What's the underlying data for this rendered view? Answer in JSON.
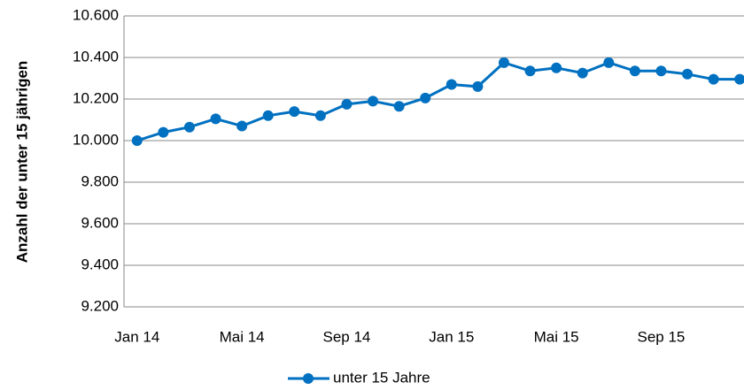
{
  "chart_data": {
    "type": "line",
    "y_label": "Anzahl der unter 15 jährigen",
    "categories": [
      "Jan 14",
      null,
      null,
      null,
      "Mai 14",
      null,
      null,
      null,
      "Sep 14",
      null,
      null,
      null,
      "Jan 15",
      null,
      null,
      null,
      "Mai 15",
      null,
      null,
      null,
      "Sep 15",
      null,
      null,
      null
    ],
    "series": [
      {
        "name": "unter 15 Jahre",
        "color": "#0070c0",
        "values": [
          10000,
          10040,
          10065,
          10105,
          10070,
          10120,
          10140,
          10120,
          10175,
          10190,
          10165,
          10205,
          10270,
          10260,
          10375,
          10335,
          10350,
          10325,
          10375,
          10335,
          10335,
          10320,
          10295,
          10295
        ]
      }
    ],
    "ylim": [
      9200,
      10600
    ],
    "yticks": [
      {
        "value": 9200,
        "label": "9.200"
      },
      {
        "value": 9400,
        "label": "9.400"
      },
      {
        "value": 9600,
        "label": "9.600"
      },
      {
        "value": 9800,
        "label": "9.800"
      },
      {
        "value": 10000,
        "label": "10.000"
      },
      {
        "value": 10200,
        "label": "10.200"
      },
      {
        "value": 10400,
        "label": "10.400"
      },
      {
        "value": 10600,
        "label": "10.600"
      }
    ],
    "grid": true
  }
}
